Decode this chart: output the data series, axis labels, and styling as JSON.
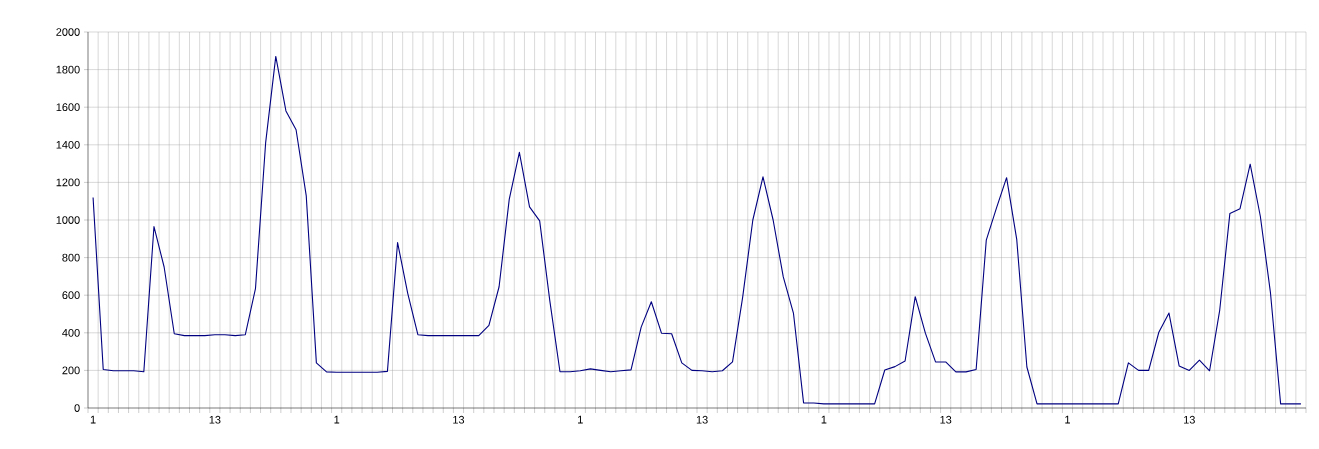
{
  "chart_data": {
    "type": "line",
    "categories": [
      "1",
      null,
      null,
      null,
      null,
      null,
      null,
      null,
      null,
      null,
      null,
      null,
      "13",
      null,
      null,
      null,
      null,
      null,
      null,
      null,
      null,
      null,
      null,
      null,
      "1",
      null,
      null,
      null,
      null,
      null,
      null,
      null,
      null,
      null,
      null,
      null,
      "13",
      null,
      null,
      null,
      null,
      null,
      null,
      null,
      null,
      null,
      null,
      null,
      "1",
      null,
      null,
      null,
      null,
      null,
      null,
      null,
      null,
      null,
      null,
      null,
      "13",
      null,
      null,
      null,
      null,
      null,
      null,
      null,
      null,
      null,
      null,
      null,
      "1",
      null,
      null,
      null,
      null,
      null,
      null,
      null,
      null,
      null,
      null,
      null,
      "13",
      null,
      null,
      null,
      null,
      null,
      null,
      null,
      null,
      null,
      null,
      null,
      "1",
      null,
      null,
      null,
      null,
      null,
      null,
      null,
      null,
      null,
      null,
      null,
      "13",
      null,
      null,
      null,
      null,
      null,
      null,
      null,
      null,
      null,
      null,
      null
    ],
    "values": [
      1120,
      205,
      198,
      198,
      198,
      193,
      965,
      750,
      395,
      385,
      385,
      385,
      390,
      390,
      385,
      390,
      635,
      1410,
      1870,
      1580,
      1480,
      1130,
      240,
      192,
      190,
      190,
      190,
      190,
      190,
      195,
      880,
      610,
      390,
      385,
      385,
      385,
      385,
      385,
      385,
      440,
      645,
      1110,
      1360,
      1070,
      995,
      570,
      193,
      193,
      198,
      208,
      200,
      193,
      198,
      203,
      430,
      565,
      398,
      395,
      240,
      200,
      198,
      193,
      198,
      245,
      590,
      1000,
      1230,
      1000,
      697,
      505,
      27,
      27,
      22,
      22,
      22,
      22,
      22,
      22,
      202,
      220,
      250,
      592,
      398,
      245,
      245,
      192,
      192,
      205,
      893,
      1063,
      1225,
      897,
      218,
      22,
      22,
      22,
      22,
      22,
      22,
      22,
      22,
      22,
      240,
      200,
      200,
      403,
      505,
      224,
      200,
      255,
      198,
      521,
      1035,
      1060,
      1297,
      1020,
      612,
      22,
      22,
      22
    ],
    "color": "#000080",
    "ylim": [
      0,
      2000
    ],
    "yticks": [
      0,
      200,
      400,
      600,
      800,
      1000,
      1200,
      1400,
      1600,
      1800,
      2000
    ],
    "grid": true,
    "marker": "none",
    "line_style": "solid"
  }
}
